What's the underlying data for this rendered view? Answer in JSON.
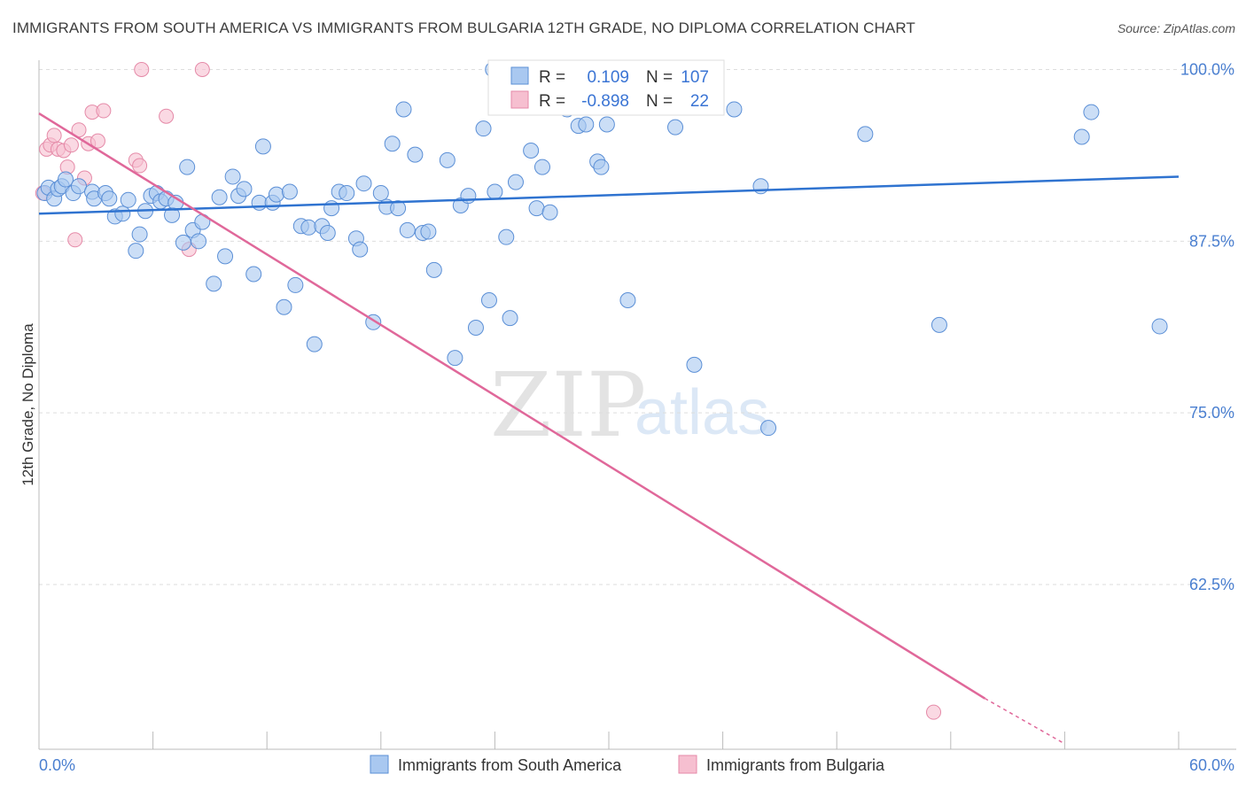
{
  "title": "IMMIGRANTS FROM SOUTH AMERICA VS IMMIGRANTS FROM BULGARIA 12TH GRADE, NO DIPLOMA CORRELATION CHART",
  "source": "Source: ZipAtlas.com",
  "watermark": {
    "zip": "ZIP",
    "atlas": "atlas"
  },
  "colors": {
    "blue_fill": "#a9c8f0",
    "blue_stroke": "#5b8fd6",
    "blue_line": "#2f73d0",
    "pink_fill": "#f6bfd0",
    "pink_stroke": "#e58aa8",
    "pink_line": "#e0689a",
    "grid": "#dddddd",
    "axis_text": "#4a7fd0"
  },
  "stats_box": {
    "r_label": "R =",
    "n_label": "N =",
    "rows": [
      {
        "series": "Immigrants from South America",
        "r": "0.109",
        "n": "107"
      },
      {
        "series": "Immigrants from Bulgaria",
        "r": "-0.898",
        "n": "22"
      }
    ]
  },
  "chart_data": {
    "type": "scatter",
    "title": "IMMIGRANTS FROM SOUTH AMERICA VS IMMIGRANTS FROM BULGARIA 12TH GRADE, NO DIPLOMA CORRELATION CHART",
    "xlabel": "",
    "ylabel": "12th Grade, No Diploma",
    "xlim": [
      0,
      60
    ],
    "ylim": [
      50.5,
      101
    ],
    "x_tick_labels": [
      "0.0%",
      "60.0%"
    ],
    "y_ticks": [
      100,
      87.5,
      75,
      62.5
    ],
    "y_tick_labels": [
      "100.0%",
      "87.5%",
      "75.0%",
      "62.5%"
    ],
    "grid": true,
    "legend_position": "bottom",
    "series": [
      {
        "name": "Immigrants from South America",
        "color": "#a9c8f0",
        "trend": {
          "x": [
            0,
            60
          ],
          "y": [
            89.5,
            92.2
          ]
        },
        "points": [
          [
            0.3,
            91.0
          ],
          [
            0.5,
            91.4
          ],
          [
            0.8,
            90.6
          ],
          [
            1.0,
            91.3
          ],
          [
            1.2,
            91.5
          ],
          [
            1.4,
            92.0
          ],
          [
            1.8,
            91.0
          ],
          [
            2.1,
            91.5
          ],
          [
            2.8,
            91.1
          ],
          [
            2.9,
            90.6
          ],
          [
            3.5,
            91.0
          ],
          [
            3.7,
            90.6
          ],
          [
            4.0,
            89.3
          ],
          [
            4.4,
            89.5
          ],
          [
            4.7,
            90.5
          ],
          [
            5.1,
            86.8
          ],
          [
            5.3,
            88.0
          ],
          [
            5.6,
            89.7
          ],
          [
            5.9,
            90.8
          ],
          [
            6.2,
            91.0
          ],
          [
            6.4,
            90.4
          ],
          [
            6.7,
            90.6
          ],
          [
            7.0,
            89.4
          ],
          [
            7.2,
            90.3
          ],
          [
            7.6,
            87.4
          ],
          [
            7.8,
            92.9
          ],
          [
            8.1,
            88.3
          ],
          [
            8.4,
            87.5
          ],
          [
            8.6,
            88.9
          ],
          [
            9.2,
            84.4
          ],
          [
            9.5,
            90.7
          ],
          [
            9.8,
            86.4
          ],
          [
            10.2,
            92.2
          ],
          [
            10.5,
            90.8
          ],
          [
            10.8,
            91.3
          ],
          [
            11.3,
            85.1
          ],
          [
            11.6,
            90.3
          ],
          [
            11.8,
            94.4
          ],
          [
            12.3,
            90.3
          ],
          [
            12.5,
            90.9
          ],
          [
            12.9,
            82.7
          ],
          [
            13.2,
            91.1
          ],
          [
            13.5,
            84.3
          ],
          [
            13.8,
            88.6
          ],
          [
            14.2,
            88.5
          ],
          [
            14.5,
            80.0
          ],
          [
            14.9,
            88.6
          ],
          [
            15.2,
            88.1
          ],
          [
            15.4,
            89.9
          ],
          [
            15.8,
            91.1
          ],
          [
            16.2,
            91.0
          ],
          [
            16.7,
            87.7
          ],
          [
            16.9,
            86.9
          ],
          [
            17.1,
            91.7
          ],
          [
            17.6,
            81.6
          ],
          [
            18.0,
            91.0
          ],
          [
            18.3,
            90.0
          ],
          [
            18.6,
            94.6
          ],
          [
            18.9,
            89.9
          ],
          [
            19.2,
            97.1
          ],
          [
            19.4,
            88.3
          ],
          [
            19.8,
            93.8
          ],
          [
            20.2,
            88.1
          ],
          [
            20.5,
            88.2
          ],
          [
            20.8,
            85.4
          ],
          [
            21.5,
            93.4
          ],
          [
            21.9,
            79.0
          ],
          [
            22.2,
            90.1
          ],
          [
            22.6,
            90.8
          ],
          [
            23.0,
            81.2
          ],
          [
            23.4,
            95.7
          ],
          [
            23.7,
            83.2
          ],
          [
            24.0,
            91.1
          ],
          [
            24.6,
            87.8
          ],
          [
            24.8,
            81.9
          ],
          [
            25.1,
            91.8
          ],
          [
            25.9,
            94.1
          ],
          [
            26.2,
            89.9
          ],
          [
            26.5,
            92.9
          ],
          [
            26.9,
            89.6
          ],
          [
            27.2,
            97.3
          ],
          [
            27.8,
            97.1
          ],
          [
            28.4,
            95.9
          ],
          [
            28.8,
            96.0
          ],
          [
            29.4,
            93.3
          ],
          [
            29.6,
            92.9
          ],
          [
            29.9,
            96.0
          ],
          [
            30.8,
            98.4
          ],
          [
            31.0,
            83.2
          ],
          [
            32.8,
            98.5
          ],
          [
            33.5,
            95.8
          ],
          [
            34.5,
            78.5
          ],
          [
            34.8,
            100.0
          ],
          [
            36.6,
            97.1
          ],
          [
            38.0,
            91.5
          ],
          [
            38.4,
            73.9
          ],
          [
            43.5,
            95.3
          ],
          [
            47.4,
            81.4
          ],
          [
            54.9,
            95.1
          ],
          [
            55.4,
            96.9
          ],
          [
            59.0,
            81.3
          ],
          [
            23.9,
            100.0
          ],
          [
            26.6,
            98.3
          ],
          [
            27.6,
            98.6
          ],
          [
            28.1,
            98.2
          ],
          [
            29.1,
            98.4
          ],
          [
            30.3,
            97.8
          ]
        ]
      },
      {
        "name": "Immigrants from Bulgaria",
        "color": "#f6bfd0",
        "trend": {
          "x": [
            0,
            49.8
          ],
          "y": [
            96.8,
            54.2
          ]
        },
        "trend_dashed": {
          "x": [
            49.8,
            54.0
          ],
          "y": [
            54.2,
            50.9
          ]
        },
        "points": [
          [
            0.2,
            91.0
          ],
          [
            0.4,
            94.2
          ],
          [
            0.6,
            94.5
          ],
          [
            0.8,
            95.2
          ],
          [
            1.0,
            94.2
          ],
          [
            1.3,
            94.1
          ],
          [
            1.5,
            92.9
          ],
          [
            1.7,
            94.5
          ],
          [
            1.9,
            87.6
          ],
          [
            2.1,
            95.6
          ],
          [
            2.4,
            92.1
          ],
          [
            2.6,
            94.6
          ],
          [
            2.8,
            96.9
          ],
          [
            3.1,
            94.8
          ],
          [
            3.4,
            97.0
          ],
          [
            5.1,
            93.4
          ],
          [
            5.3,
            93.0
          ],
          [
            5.4,
            100.0
          ],
          [
            6.7,
            96.6
          ],
          [
            7.9,
            86.9
          ],
          [
            8.6,
            100.0
          ],
          [
            47.1,
            53.2
          ]
        ]
      }
    ]
  },
  "legend": {
    "items": [
      {
        "label": "Immigrants from South America"
      },
      {
        "label": "Immigrants from Bulgaria"
      }
    ]
  }
}
